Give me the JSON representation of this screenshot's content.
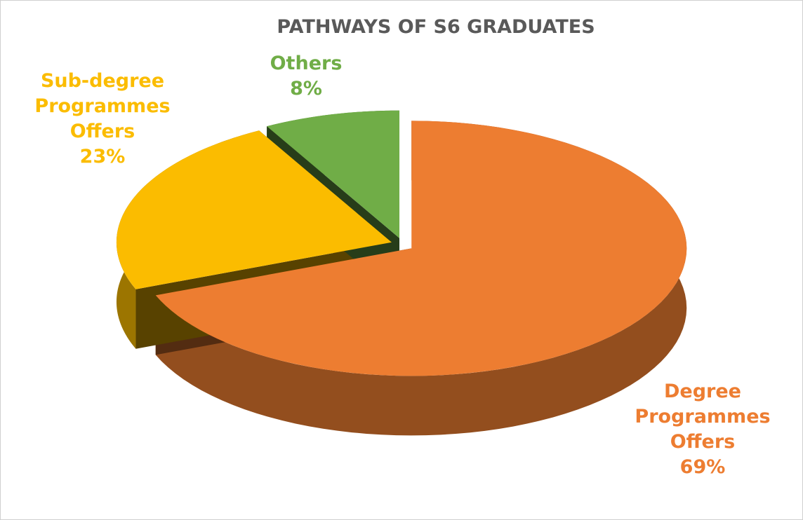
{
  "chart_data": {
    "type": "pie",
    "title": "PATHWAYS OF S6 GRADUATES",
    "categories": [
      "Degree Programmes Offers",
      "Sub-degree Programmes Offers",
      "Others"
    ],
    "values": [
      69,
      23,
      8
    ],
    "value_labels": [
      "69%",
      "23%",
      "8%"
    ],
    "colors": [
      "#ed7d31",
      "#fbbc00",
      "#70ad47"
    ]
  }
}
